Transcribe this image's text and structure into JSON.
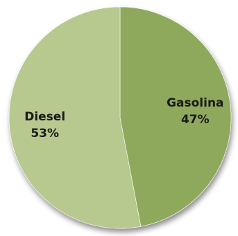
{
  "chart_data": {
    "type": "pie",
    "title": "",
    "slices": [
      {
        "label": "Gasolina",
        "value": 47,
        "value_label": "47%",
        "color": "#8fa95b"
      },
      {
        "label": "Diesel",
        "value": 53,
        "value_label": "53%",
        "color": "#b7c98e"
      }
    ],
    "start_angle": "12 o'clock",
    "direction": "clockwise",
    "legend": "none"
  }
}
